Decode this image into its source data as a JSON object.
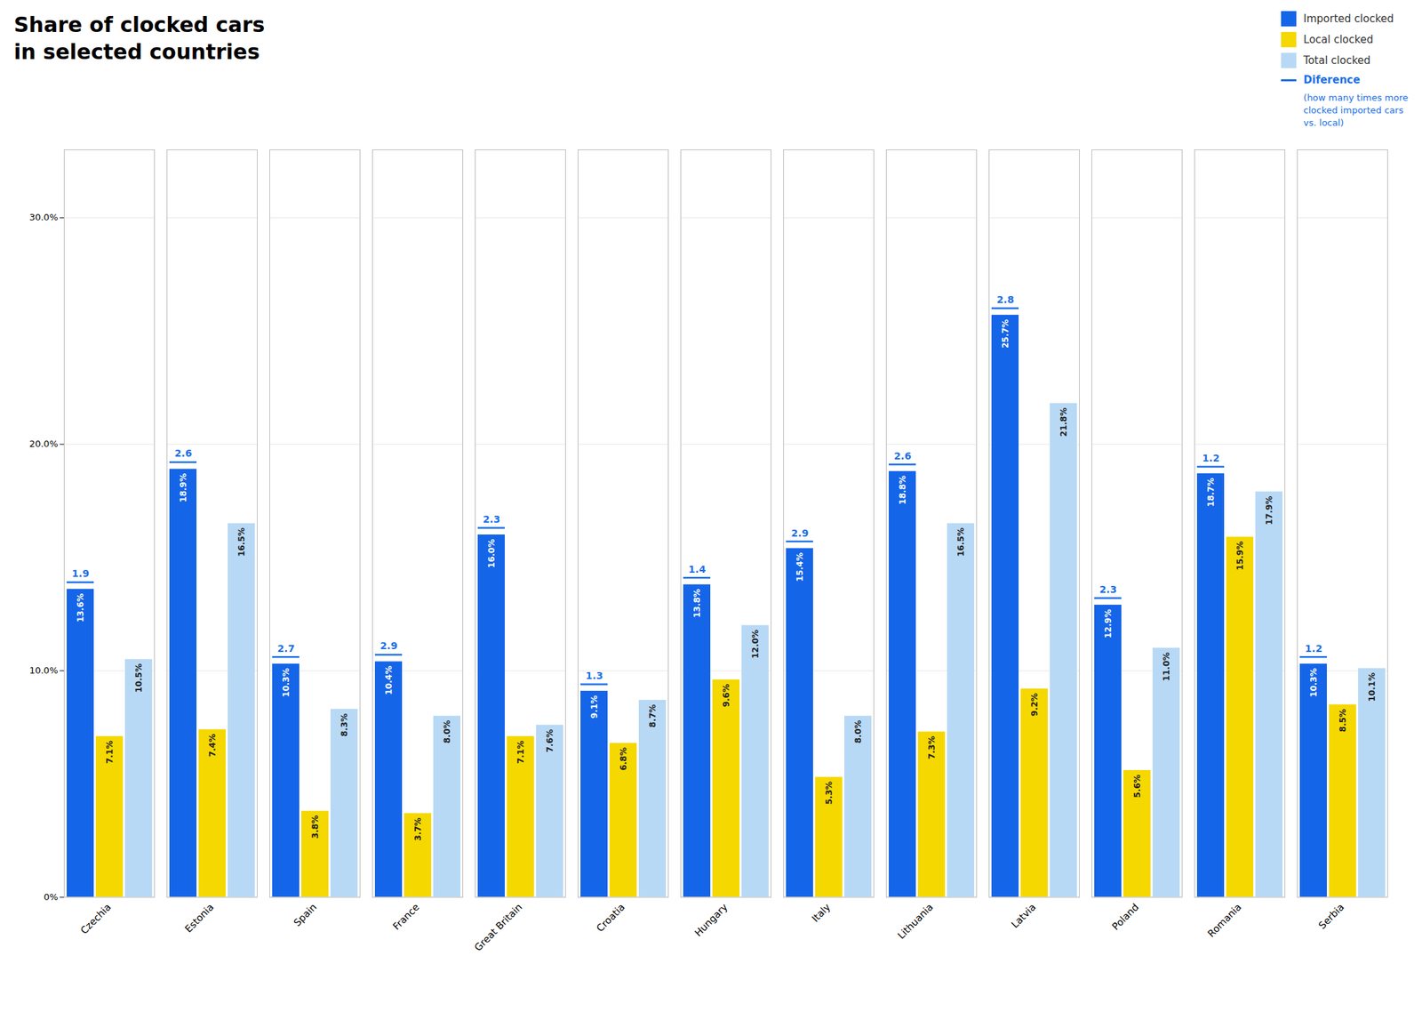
{
  "chart_data": {
    "type": "bar",
    "title": "Share of clocked cars\nin selected countries",
    "categories": [
      "Czechia",
      "Estonia",
      "Spain",
      "France",
      "Great Britain",
      "Croatia",
      "Hungary",
      "Italy",
      "Lithuania",
      "Latvia",
      "Poland",
      "Romania",
      "Serbia"
    ],
    "series": [
      {
        "name": "Imported clocked",
        "color": "#1565e8",
        "values": [
          13.6,
          18.9,
          10.3,
          10.4,
          16.0,
          9.1,
          13.8,
          15.4,
          18.8,
          25.7,
          12.9,
          18.7,
          10.3
        ],
        "value_labels": [
          "13.6%",
          "18.9%",
          "10.3%",
          "10.4%",
          "16.0%",
          "9.1%",
          "13.8%",
          "15.4%",
          "18.8%",
          "25.7%",
          "12.9%",
          "18.7%",
          "10.3%"
        ]
      },
      {
        "name": "Local clocked",
        "color": "#f5d800",
        "values": [
          7.1,
          7.4,
          3.8,
          3.7,
          7.1,
          6.8,
          9.6,
          5.3,
          7.3,
          9.2,
          5.6,
          15.9,
          8.5
        ],
        "value_labels": [
          "7.1%",
          "7.4%",
          "3.8%",
          "3.7%",
          "7.1%",
          "6.8%",
          "9.6%",
          "5.3%",
          "7.3%",
          "9.2%",
          "5.6%",
          "15.9%",
          "8.5%"
        ]
      },
      {
        "name": "Total clocked",
        "color": "#b8d9f5",
        "values": [
          10.5,
          16.5,
          8.3,
          8.0,
          7.6,
          8.7,
          12.0,
          8.0,
          16.5,
          21.8,
          11.0,
          17.9,
          10.1
        ],
        "value_labels": [
          "10.5%",
          "16.5%",
          "8.3%",
          "8.0%",
          "7.6%",
          "8.7%",
          "12.0%",
          "8.0%",
          "16.5%",
          "21.8%",
          "11.0%",
          "17.9%",
          "10.1%"
        ]
      }
    ],
    "difference": {
      "name": "Diference",
      "color": "#1a6fe8",
      "note": "(how many times more\nclocked imported cars\nvs. local)",
      "values": [
        1.9,
        2.6,
        2.7,
        2.9,
        2.3,
        1.3,
        1.4,
        2.9,
        2.6,
        2.8,
        2.3,
        1.2,
        1.2
      ]
    },
    "ylim": [
      0,
      33
    ],
    "yticks": [
      {
        "value": 0,
        "label": "0%"
      },
      {
        "value": 10,
        "label": "10.0%"
      },
      {
        "value": 20,
        "label": "20.0%"
      },
      {
        "value": 30,
        "label": "30.0%"
      }
    ],
    "grid": true,
    "data_labels": true,
    "legend": "top right"
  }
}
